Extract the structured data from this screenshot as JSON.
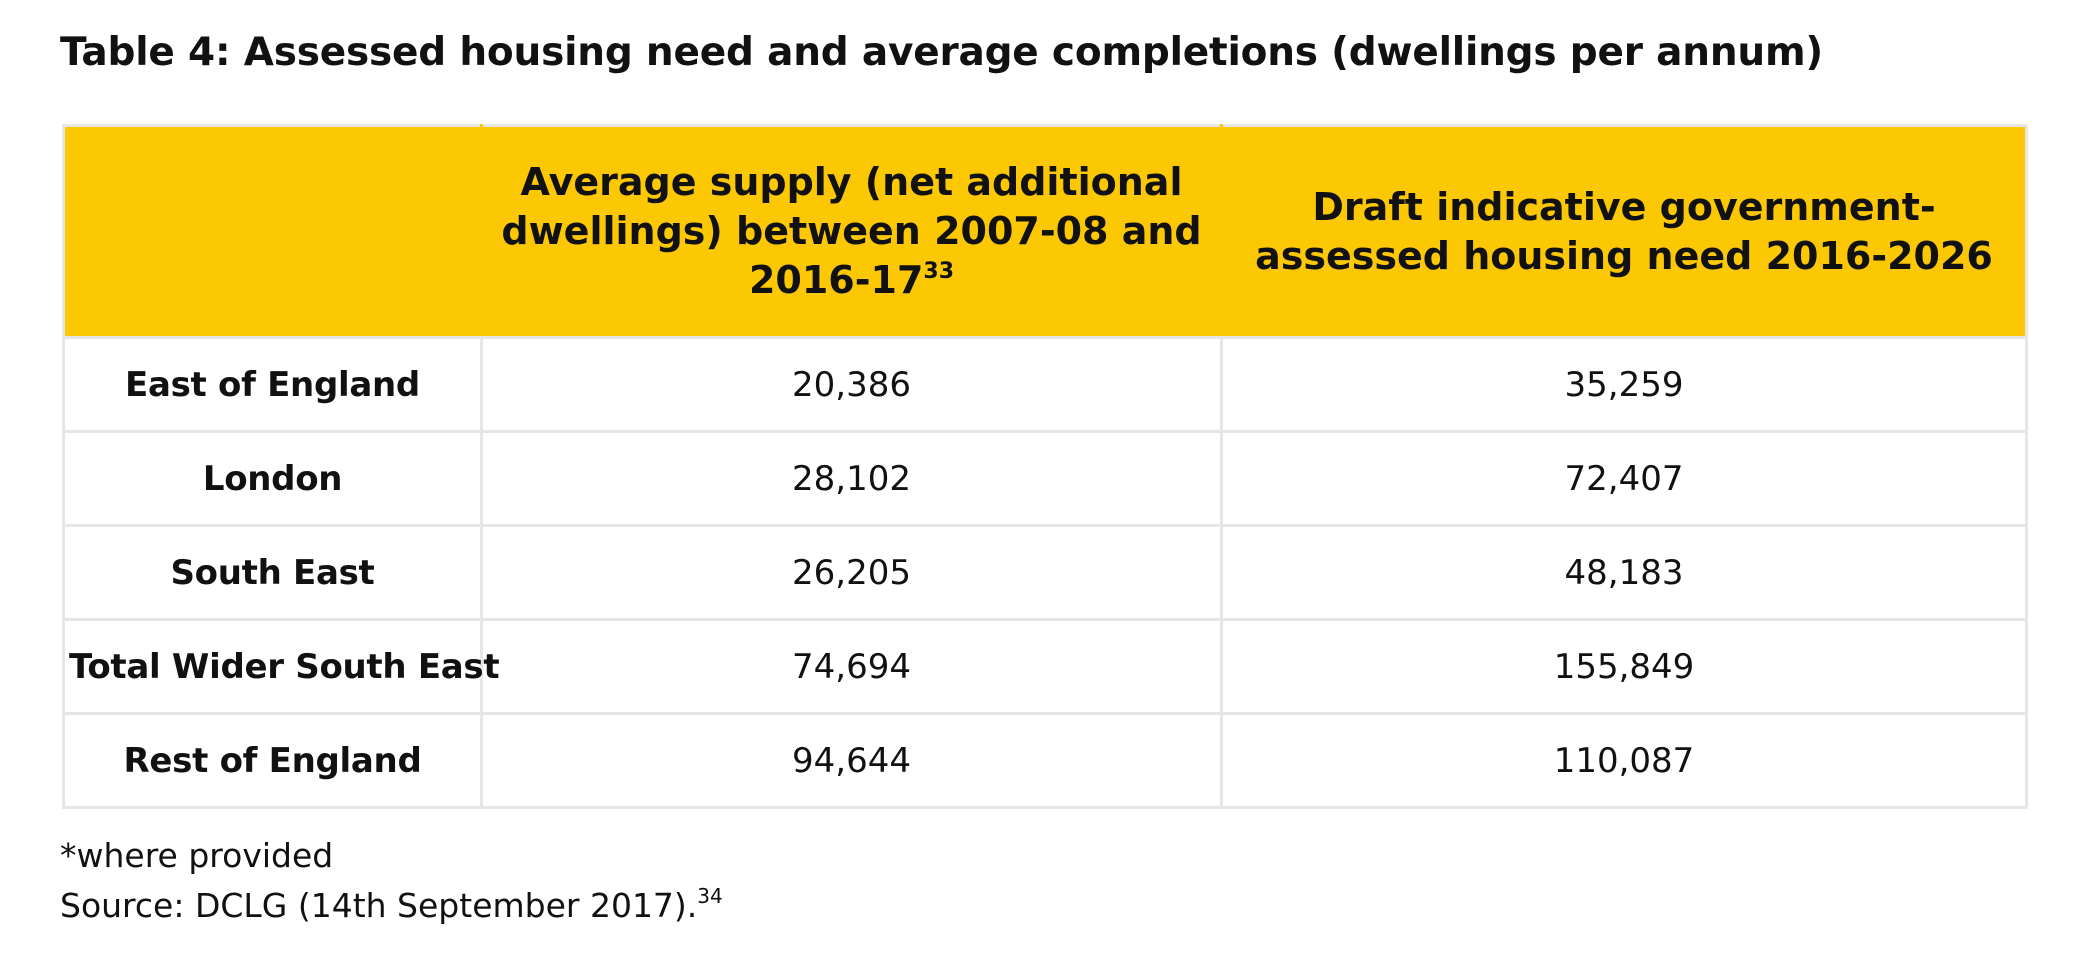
{
  "title": "Table 4: Assessed housing need and average completions (dwellings per annum)",
  "table": {
    "headers": {
      "col1": "",
      "col2": "Average supply (net additional dwellings) between 2007-08 and 2016-17",
      "col2_sup": "33",
      "col3": "Draft indicative government-assessed housing need 2016-2026"
    },
    "rows": [
      {
        "region": "East of England",
        "supply": "20,386",
        "need": "35,259"
      },
      {
        "region": "London",
        "supply": "28,102",
        "need": "72,407"
      },
      {
        "region": "South East",
        "supply": "26,205",
        "need": "48,183"
      },
      {
        "region": "Total Wider South East",
        "supply": "74,694",
        "need": "155,849"
      },
      {
        "region": "Rest of England",
        "supply": "94,644",
        "need": "110,087"
      }
    ]
  },
  "footnotes": {
    "note": "*where provided",
    "source": "Source: DCLG (14th September 2017).",
    "source_sup": "34"
  },
  "colors": {
    "header_bg": "#fcc804",
    "grid": "#e6e6e6",
    "text": "#111111"
  }
}
